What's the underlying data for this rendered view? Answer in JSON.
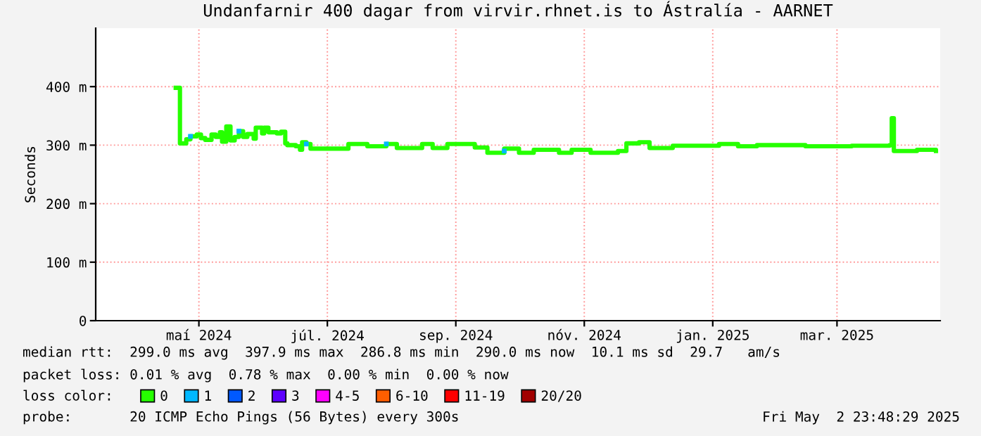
{
  "chart_data": {
    "type": "step",
    "title": "Undanfarnir 400 dagar from virvir.rhnet.is to Ástralía - AARNET",
    "ylabel": "Seconds",
    "xlim": [
      "2024-03-28",
      "2025-05-03"
    ],
    "xticks": [
      {
        "value": "2024-05-16",
        "label": "maí 2024"
      },
      {
        "value": "2024-07-16",
        "label": "júl. 2024"
      },
      {
        "value": "2024-09-15",
        "label": "sep. 2024"
      },
      {
        "value": "2024-11-15",
        "label": "nóv. 2024"
      },
      {
        "value": "2025-01-15",
        "label": "jan. 2025"
      },
      {
        "value": "2025-03-15",
        "label": "mar. 2025"
      }
    ],
    "ylim": [
      0,
      500
    ],
    "yticks": [
      0,
      {
        "value": 100,
        "label": "100 m"
      },
      {
        "value": 200,
        "label": "200 m"
      },
      {
        "value": 300,
        "label": "300 m"
      },
      {
        "value": 400,
        "label": "400 m"
      }
    ],
    "grid": true,
    "legend": "bottom",
    "legend_title": "loss color:",
    "series": [
      {
        "name": "0",
        "color": "#26ff00",
        "x": [
          "2024-05-05",
          "2024-05-07",
          "2024-05-09",
          "2024-05-10",
          "2024-05-12",
          "2024-05-15",
          "2024-05-17",
          "2024-05-19",
          "2024-05-22",
          "2024-05-24",
          "2024-05-26",
          "2024-05-27",
          "2024-05-29",
          "2024-05-31",
          "2024-06-02",
          "2024-06-04",
          "2024-06-06",
          "2024-06-08",
          "2024-06-11",
          "2024-06-12",
          "2024-06-15",
          "2024-06-16",
          "2024-06-18",
          "2024-06-22",
          "2024-06-24",
          "2024-06-26",
          "2024-06-27",
          "2024-07-01",
          "2024-07-03",
          "2024-07-04",
          "2024-07-06",
          "2024-07-08",
          "2024-07-26",
          "2024-08-04",
          "2024-08-13",
          "2024-08-18",
          "2024-08-30",
          "2024-09-04",
          "2024-09-11",
          "2024-09-24",
          "2024-09-30",
          "2024-10-08",
          "2024-10-15",
          "2024-10-22",
          "2024-11-03",
          "2024-11-09",
          "2024-11-18",
          "2024-12-01",
          "2024-12-05",
          "2024-12-11",
          "2024-12-16",
          "2024-12-27",
          "2025-01-18",
          "2025-01-27",
          "2025-02-05",
          "2025-02-28",
          "2025-03-22",
          "2025-04-09",
          "2025-04-10",
          "2025-04-11",
          "2025-04-22",
          "2025-05-01"
        ],
        "values": [
          398,
          303,
          303,
          310,
          315,
          318,
          312,
          309,
          318,
          314,
          322,
          306,
          332,
          308,
          314,
          324,
          314,
          319,
          311,
          330,
          320,
          330,
          322,
          320,
          323,
          303,
          300,
          298,
          292,
          305,
          302,
          294,
          302,
          298,
          302,
          295,
          302,
          295,
          302,
          296,
          287,
          294,
          287,
          292,
          287,
          292,
          287,
          290,
          303,
          305,
          295,
          299,
          302,
          298,
          300,
          298,
          299,
          300,
          346,
          290,
          292,
          290
        ]
      },
      {
        "name": "1",
        "color": "#00b8ff",
        "type": "scatter",
        "marker": "square",
        "x": [
          "2024-05-12",
          "2024-06-04",
          "2024-07-06",
          "2024-08-13",
          "2024-10-08"
        ],
        "values": [
          315,
          324,
          302,
          302,
          290
        ]
      },
      {
        "name": "2",
        "color": "#0059ff"
      },
      {
        "name": "3",
        "color": "#5e00ff"
      },
      {
        "name": "4-5",
        "color": "#ff00ff"
      },
      {
        "name": "6-10",
        "color": "#ff5e00"
      },
      {
        "name": "11-19",
        "color": "#ff0000"
      },
      {
        "name": "20/20",
        "color": "#a10000"
      }
    ],
    "annotations": [
      "median rtt:  299.0 ms avg  397.9 ms max  286.8 ms min  290.0 ms now  10.1 ms sd  29.7   am/s",
      "packet loss: 0.01 % avg  0.78 % max  0.00 % min  0.00 % now",
      "probe:       20 ICMP Echo Pings (56 Bytes) every 300s",
      "Fri May  2 23:48:29 2025"
    ]
  }
}
